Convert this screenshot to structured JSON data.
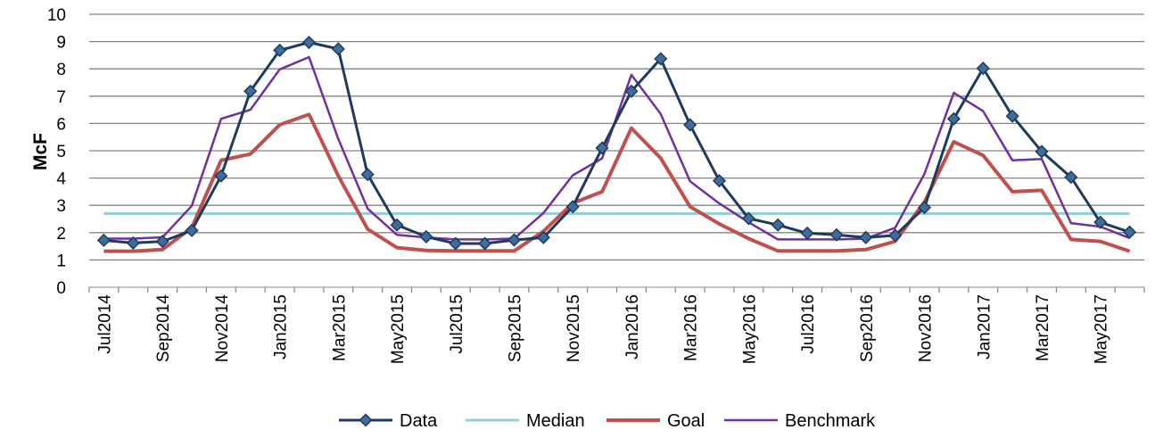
{
  "chart_data": {
    "type": "line",
    "ylabel": "McF",
    "xlabel": "",
    "title": "",
    "ylim": [
      0,
      10
    ],
    "yticks": [
      "0",
      "1",
      "2",
      "3",
      "4",
      "5",
      "6",
      "7",
      "8",
      "9",
      "10"
    ],
    "grid": "horizontal",
    "legend_position": "bottom",
    "categories": [
      "Jul2014",
      "Aug2014",
      "Sep2014",
      "Oct2014",
      "Nov2014",
      "Dec2014",
      "Jan2015",
      "Feb2015",
      "Mar2015",
      "Apr2015",
      "May2015",
      "Jun2015",
      "Jul2015",
      "Aug2015",
      "Sep2015",
      "Oct2015",
      "Nov2015",
      "Dec2015",
      "Jan2016",
      "Feb2016",
      "Mar2016",
      "Apr2016",
      "May2016",
      "Jun2016",
      "Jul2016",
      "Aug2016",
      "Sep2016",
      "Oct2016",
      "Nov2016",
      "Dec2016",
      "Jan2017",
      "Feb2017",
      "Mar2017",
      "Apr2017",
      "May2017",
      "Jun2017"
    ],
    "x_tick_labels": [
      "Jul2014",
      "Sep2014",
      "Nov2014",
      "Jan2015",
      "Mar2015",
      "May2015",
      "Jul2015",
      "Sep2015",
      "Nov2015",
      "Jan2016",
      "Mar2016",
      "May2016",
      "Jul2016",
      "Sep2016",
      "Nov2016",
      "Jan2017",
      "Mar2017",
      "May2017"
    ],
    "series": [
      {
        "name": "Data",
        "color": "#1f3a5f",
        "marker": "diamond",
        "marker_color": "#3e6d9c",
        "values": [
          1.72,
          1.62,
          1.68,
          2.08,
          4.08,
          7.18,
          8.68,
          8.97,
          8.73,
          4.13,
          2.28,
          1.85,
          1.6,
          1.6,
          1.73,
          1.82,
          2.95,
          5.1,
          7.18,
          8.37,
          5.95,
          3.9,
          2.52,
          2.28,
          1.98,
          1.92,
          1.82,
          1.9,
          2.92,
          6.17,
          8.02,
          6.27,
          4.97,
          4.03,
          2.38,
          2.02
        ]
      },
      {
        "name": "Median",
        "color": "#92cddc",
        "values": [
          2.7,
          2.7,
          2.7,
          2.7,
          2.7,
          2.7,
          2.7,
          2.7,
          2.7,
          2.7,
          2.7,
          2.7,
          2.7,
          2.7,
          2.7,
          2.7,
          2.7,
          2.7,
          2.7,
          2.7,
          2.7,
          2.7,
          2.7,
          2.7,
          2.7,
          2.7,
          2.7,
          2.7,
          2.7,
          2.7,
          2.7,
          2.7,
          2.7,
          2.7,
          2.7,
          2.7
        ]
      },
      {
        "name": "Goal",
        "color": "#c0504d",
        "values": [
          1.32,
          1.32,
          1.38,
          2.18,
          4.65,
          4.88,
          5.95,
          6.33,
          4.08,
          2.13,
          1.45,
          1.35,
          1.33,
          1.33,
          1.33,
          2.05,
          3.08,
          3.5,
          5.83,
          4.73,
          2.95,
          2.32,
          1.78,
          1.33,
          1.33,
          1.33,
          1.38,
          1.68,
          3.12,
          5.33,
          4.83,
          3.5,
          3.55,
          1.75,
          1.68,
          1.32
        ]
      },
      {
        "name": "Benchmark",
        "color": "#7030a0",
        "values": [
          1.78,
          1.78,
          1.83,
          2.98,
          6.17,
          6.5,
          7.98,
          8.43,
          5.43,
          2.88,
          1.92,
          1.82,
          1.75,
          1.75,
          1.78,
          2.72,
          4.1,
          4.72,
          7.78,
          6.35,
          3.88,
          3.07,
          2.38,
          1.75,
          1.75,
          1.75,
          1.78,
          2.18,
          4.15,
          7.12,
          6.45,
          4.65,
          4.7,
          2.35,
          2.22,
          1.8
        ]
      }
    ]
  }
}
